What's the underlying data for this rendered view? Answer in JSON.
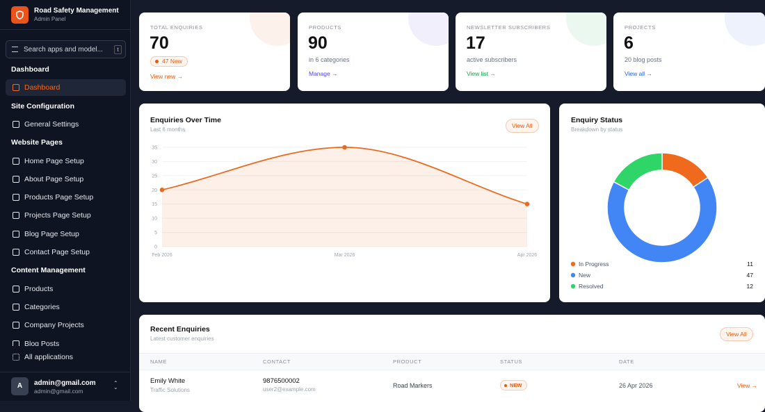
{
  "sidebar": {
    "brand": "Road Safety Management",
    "brand_sub": "Admin Panel",
    "search": "Search apps and model...",
    "search_key": "t",
    "sections": [
      {
        "title": "Dashboard",
        "items": [
          "Dashboard"
        ]
      },
      {
        "title": "Site Configuration",
        "items": [
          "General Settings"
        ]
      },
      {
        "title": "Website Pages",
        "items": [
          "Home Page Setup",
          "About Page Setup",
          "Products Page Setup",
          "Projects Page Setup",
          "Blog Page Setup",
          "Contact Page Setup"
        ]
      },
      {
        "title": "Content Management",
        "items": [
          "Products",
          "Categories",
          "Company Projects",
          "Blog Posts"
        ]
      }
    ],
    "all_apps": "All applications",
    "user": {
      "avatar": "A",
      "name": "admin@gmail.com",
      "email": "admin@gmail.com"
    }
  },
  "stats": [
    {
      "label": "TOTAL ENQUIRIES",
      "value": 70,
      "badge": "47 New",
      "link": "View new →"
    },
    {
      "label": "PRODUCTS",
      "value": 90,
      "note": "in 6 categories",
      "link": "Manage →"
    },
    {
      "label": "NEWSLETTER SUBSCRIBERS",
      "value": 17,
      "note": "active subscribers",
      "link": "View list →"
    },
    {
      "label": "PROJECTS",
      "value": 6,
      "note": "20 blog posts",
      "link": "View all →"
    }
  ],
  "chart_data": [
    {
      "type": "line",
      "title": "Enquiries Over Time",
      "subtitle": "Last 6 months",
      "button": "View All",
      "categories": [
        "Feb 2026",
        "Mar 2026",
        "Apr 2026"
      ],
      "values": [
        20,
        35,
        15
      ],
      "color": "#ea6a1f",
      "ylim": [
        0,
        35
      ],
      "yticks": [
        0,
        5,
        10,
        15,
        20,
        25,
        30,
        35
      ],
      "grid": true
    },
    {
      "type": "pie",
      "title": "Enquiry Status",
      "subtitle": "Breakdown by status",
      "categories": [
        "In Progress",
        "New",
        "Resolved"
      ],
      "values": [
        11,
        47,
        12
      ],
      "colors": [
        "#f06a1d",
        "#4285f4",
        "#2fd566"
      ]
    }
  ],
  "table": {
    "title": "Recent Enquiries",
    "subtitle": "Latest customer enquiries",
    "button": "View All",
    "columns": [
      "NAME",
      "CONTACT",
      "PRODUCT",
      "STATUS",
      "DATE"
    ],
    "rows": [
      {
        "name": "Emily White",
        "company": "Traffic Solutions",
        "phone": "9876500002",
        "email": "user2@example.com",
        "product": "Road Markers",
        "status": "NEW",
        "date": "26 Apr 2026",
        "action": "View →"
      }
    ]
  }
}
